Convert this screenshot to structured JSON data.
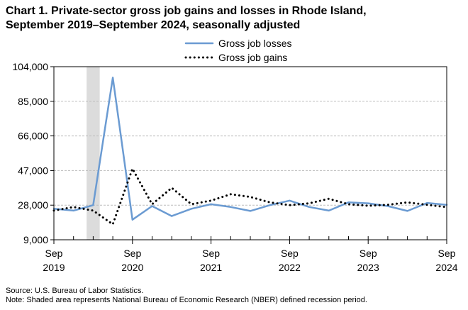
{
  "title": "Chart 1. Private-sector gross job gains and losses in Rhode Island,\nSeptember 2019–September 2024, seasonally adjusted",
  "source": "Source: U.S. Bureau of Labor Statistics.",
  "note": "Note: Shaded area represents National Bureau of Economic Research (NBER) defined recession period.",
  "chart_data": {
    "type": "line",
    "title": "Chart 1. Private-sector gross job gains and losses in Rhode Island, September 2019–September 2024, seasonally adjusted",
    "xlabel": "",
    "ylabel": "",
    "x": [
      "2019-09",
      "2019-12",
      "2020-03",
      "2020-06",
      "2020-09",
      "2020-12",
      "2021-03",
      "2021-06",
      "2021-09",
      "2021-12",
      "2022-03",
      "2022-06",
      "2022-09",
      "2022-12",
      "2023-03",
      "2023-06",
      "2023-09",
      "2023-12",
      "2024-03",
      "2024-06",
      "2024-09"
    ],
    "xticks": [
      {
        "x": "2019-09",
        "line1": "Sep",
        "line2": "2019"
      },
      {
        "x": "2020-09",
        "line1": "Sep",
        "line2": "2020"
      },
      {
        "x": "2021-09",
        "line1": "Sep",
        "line2": "2021"
      },
      {
        "x": "2022-09",
        "line1": "Sep",
        "line2": "2022"
      },
      {
        "x": "2023-09",
        "line1": "Sep",
        "line2": "2023"
      },
      {
        "x": "2024-09",
        "line1": "Sep",
        "line2": "2024"
      }
    ],
    "yticks": [
      9000,
      28000,
      47000,
      66000,
      85000,
      104000
    ],
    "ytick_labels": [
      "9,000",
      "28,000",
      "47,000",
      "66,000",
      "85,000",
      "104,000"
    ],
    "ylim": [
      9000,
      104000
    ],
    "grid": "horizontal dashed",
    "legend_position": "top-center",
    "recession": {
      "start": "2020-02",
      "end": "2020-04"
    },
    "series": [
      {
        "name": "Gross job losses",
        "style": "solid",
        "color": "#6b9bd2",
        "values": [
          26000,
          25000,
          28000,
          98000,
          20000,
          27500,
          22000,
          26000,
          28500,
          27000,
          24800,
          28000,
          30500,
          27000,
          25000,
          29500,
          29000,
          27500,
          24800,
          29200,
          28200
        ]
      },
      {
        "name": "Gross job gains",
        "style": "dotted",
        "color": "#000000",
        "values": [
          25000,
          27000,
          25000,
          17500,
          48000,
          28500,
          37500,
          28500,
          30500,
          34000,
          32500,
          29500,
          28000,
          29000,
          31500,
          28500,
          27700,
          28200,
          29500,
          28200,
          26900
        ]
      }
    ]
  }
}
